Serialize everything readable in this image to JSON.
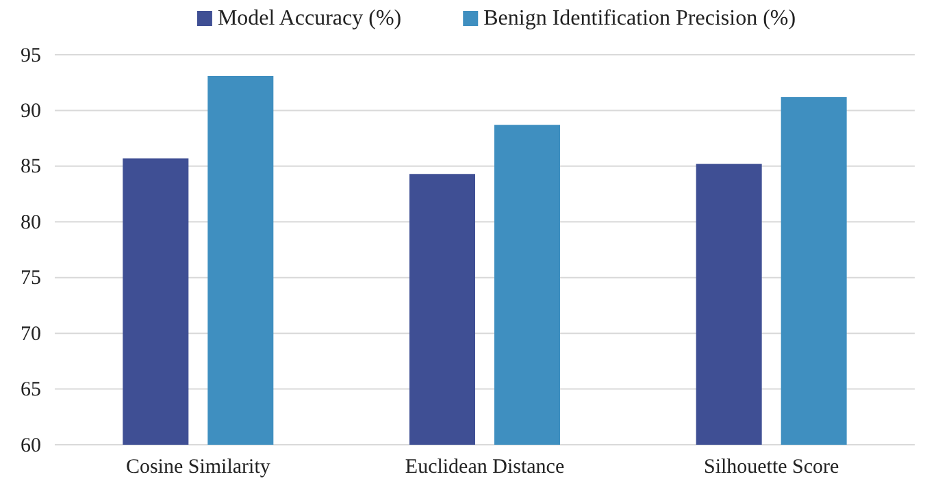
{
  "chart_data": {
    "type": "bar",
    "categories": [
      "Cosine Similarity",
      "Euclidean Distance",
      "Silhouette Score"
    ],
    "series": [
      {
        "name": "Model Accuracy (%)",
        "color": "#3f4f94",
        "values": [
          85.7,
          84.3,
          85.2
        ]
      },
      {
        "name": "Benign Identification Precision (%)",
        "color": "#3f8fc0",
        "values": [
          93.1,
          88.7,
          91.2
        ]
      }
    ],
    "ylim": [
      60,
      95
    ],
    "yticks": [
      60,
      65,
      70,
      75,
      80,
      85,
      90,
      95
    ],
    "grid": "y",
    "legend": "top"
  }
}
